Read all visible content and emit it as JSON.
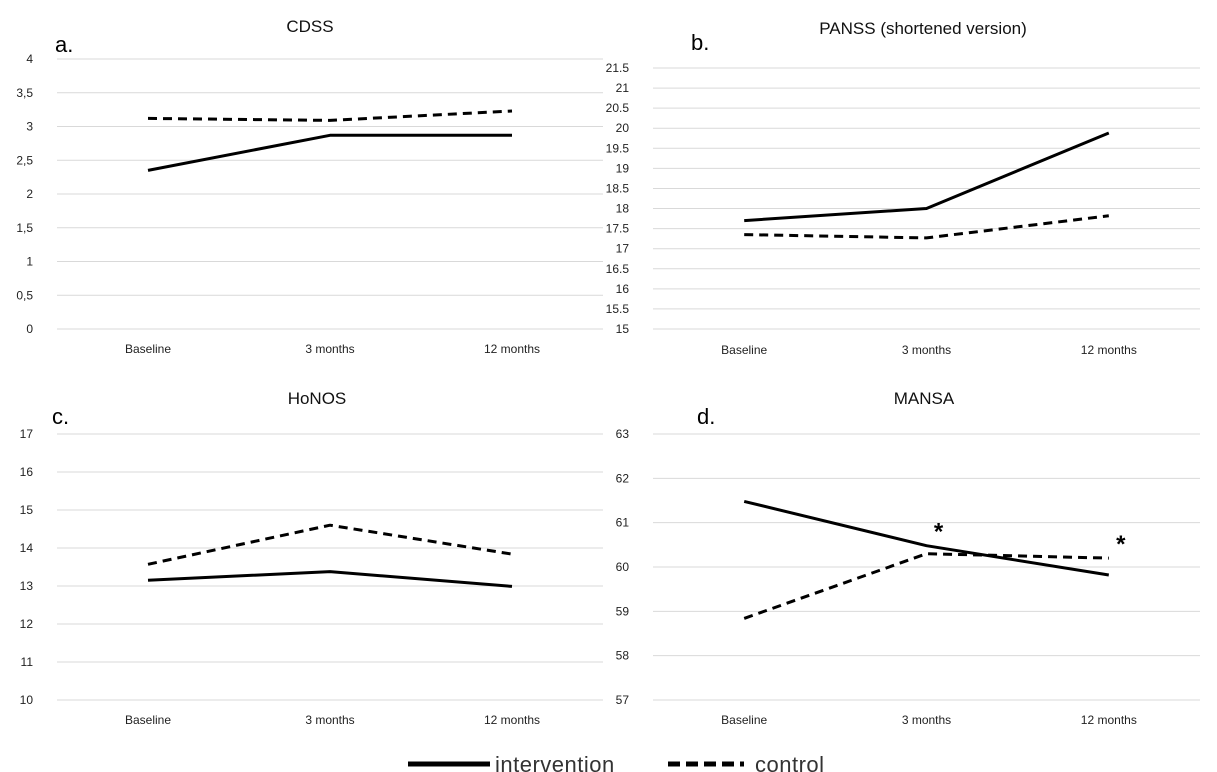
{
  "chart_data": [
    {
      "type": "line",
      "panel_letter": "a.",
      "title": "CDSS",
      "categories": [
        "Baseline",
        "3 months",
        "12 months"
      ],
      "y_ticks": [
        "0",
        "0,5",
        "1",
        "1,5",
        "2",
        "2,5",
        "3",
        "3,5",
        "4"
      ],
      "ylim": [
        0,
        4
      ],
      "grid": true,
      "series": [
        {
          "name": "intervention",
          "style": "solid",
          "values": [
            2.35,
            2.87,
            2.87
          ]
        },
        {
          "name": "control",
          "style": "dashed",
          "values": [
            3.12,
            3.09,
            3.23
          ]
        }
      ],
      "annotations": []
    },
    {
      "type": "line",
      "panel_letter": "b.",
      "title": "PANSS (shortened version)",
      "categories": [
        "Baseline",
        "3 months",
        "12 months"
      ],
      "y_ticks": [
        "15",
        "15.5",
        "16",
        "16.5",
        "17",
        "17.5",
        "18",
        "18.5",
        "19",
        "19.5",
        "20",
        "20.5",
        "21",
        "21.5"
      ],
      "ylim": [
        15,
        21.5
      ],
      "grid": true,
      "series": [
        {
          "name": "intervention",
          "style": "solid",
          "values": [
            17.7,
            18.0,
            19.88
          ]
        },
        {
          "name": "control",
          "style": "dashed",
          "values": [
            17.35,
            17.27,
            17.82
          ]
        }
      ],
      "annotations": []
    },
    {
      "type": "line",
      "panel_letter": "c.",
      "title": "HoNOS",
      "categories": [
        "Baseline",
        "3 months",
        "12 months"
      ],
      "y_ticks": [
        "10",
        "11",
        "12",
        "13",
        "14",
        "15",
        "16",
        "17"
      ],
      "ylim": [
        10,
        17
      ],
      "grid": true,
      "series": [
        {
          "name": "intervention",
          "style": "solid",
          "values": [
            13.15,
            13.38,
            12.99
          ]
        },
        {
          "name": "control",
          "style": "dashed",
          "values": [
            13.57,
            14.6,
            13.84
          ]
        }
      ],
      "annotations": []
    },
    {
      "type": "line",
      "panel_letter": "d.",
      "title": "MANSA",
      "categories": [
        "Baseline",
        "3 months",
        "12 months"
      ],
      "y_ticks": [
        "57",
        "58",
        "59",
        "60",
        "61",
        "62",
        "63"
      ],
      "ylim": [
        57,
        63
      ],
      "grid": true,
      "series": [
        {
          "name": "intervention",
          "style": "solid",
          "values": [
            61.48,
            60.48,
            59.82
          ]
        },
        {
          "name": "control",
          "style": "dashed",
          "values": [
            58.84,
            60.3,
            60.2
          ]
        }
      ],
      "annotations": [
        {
          "text": "*",
          "category_index": 1
        },
        {
          "text": "*",
          "category_index": 2
        }
      ]
    }
  ],
  "legend": {
    "items": [
      {
        "label": "intervention",
        "style": "solid"
      },
      {
        "label": "control",
        "style": "dashed"
      }
    ]
  }
}
